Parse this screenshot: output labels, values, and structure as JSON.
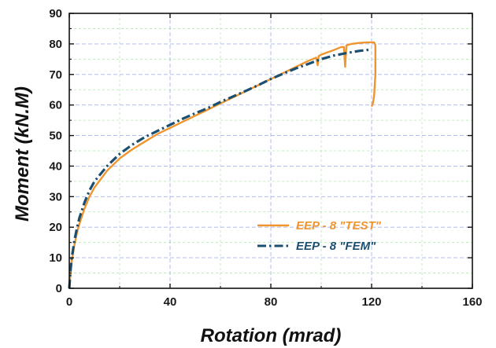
{
  "chart_data": {
    "type": "line",
    "title": "",
    "xlabel": "Rotation (mrad)",
    "ylabel": "Moment  (kN.M)",
    "xlim": [
      0,
      160
    ],
    "ylim": [
      0,
      90
    ],
    "xticks": [
      0,
      40,
      80,
      120,
      160
    ],
    "yticks": [
      0,
      10,
      20,
      30,
      40,
      50,
      60,
      70,
      80,
      90
    ],
    "grid": true,
    "legend_position": "bottom-right",
    "series": [
      {
        "name": "EEP - 8 \"TEST\"",
        "color": "#f0952e",
        "style": "solid",
        "x": [
          0,
          0.5,
          1,
          2,
          3,
          4,
          6,
          8,
          10,
          15,
          20,
          25,
          30,
          35,
          40,
          45,
          50,
          55,
          60,
          65,
          70,
          75,
          80,
          85,
          90,
          95,
          98,
          98.6,
          99,
          100,
          105,
          108,
          109,
          109.5,
          110,
          112,
          115,
          118,
          120,
          121,
          121.3,
          121.5,
          121.5,
          121,
          120.5,
          120
        ],
        "y": [
          0,
          5,
          9,
          14,
          18,
          21,
          26,
          30,
          33,
          38.5,
          42.5,
          45.5,
          48,
          50.5,
          52.5,
          54.5,
          56.5,
          58.5,
          60.5,
          62.5,
          64.5,
          66.5,
          68.5,
          70.5,
          72.5,
          74.5,
          75.5,
          73,
          76,
          76.5,
          78,
          79,
          79,
          72.5,
          79.5,
          80,
          80.3,
          80.5,
          80.5,
          80.5,
          80,
          79.5,
          70,
          63,
          60.5,
          59.5
        ]
      },
      {
        "name": "EEP - 8 \"FEM\"",
        "color": "#1b4f72",
        "style": "dash-dot",
        "x": [
          0,
          0.5,
          1,
          2,
          3,
          4,
          6,
          8,
          10,
          15,
          20,
          25,
          30,
          35,
          40,
          45,
          50,
          55,
          60,
          65,
          70,
          75,
          80,
          85,
          90,
          95,
          100,
          105,
          110,
          115,
          118,
          120
        ],
        "y": [
          0,
          6,
          10,
          15.5,
          19.5,
          23,
          28,
          32,
          35,
          40,
          44,
          47,
          49.5,
          51.5,
          53.5,
          55.5,
          57.3,
          59,
          61,
          62.8,
          64.6,
          66.5,
          68.5,
          70.3,
          72,
          73.5,
          75,
          76.2,
          77,
          77.7,
          78,
          78.2
        ]
      }
    ]
  }
}
